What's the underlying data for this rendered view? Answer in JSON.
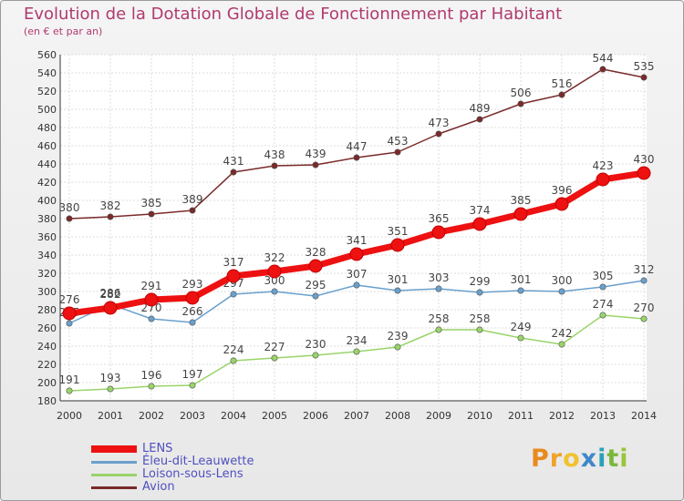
{
  "title": "Evolution de la Dotation Globale de Fonctionnement par Habitant",
  "subtitle": "(en € et par an)",
  "logo": {
    "letters": [
      {
        "ch": "P",
        "color": "#e98a1e"
      },
      {
        "ch": "r",
        "color": "#f0a32a"
      },
      {
        "ch": "o",
        "color": "#f2c12e"
      },
      {
        "ch": "x",
        "color": "#3f87c8"
      },
      {
        "ch": "i",
        "color": "#2aa0b8"
      },
      {
        "ch": "t",
        "color": "#7ab83d"
      },
      {
        "ch": "i",
        "color": "#9bc43a"
      }
    ]
  },
  "chart_data": {
    "type": "line",
    "title": "Evolution de la Dotation Globale de Fonctionnement par Habitant",
    "subtitle": "(en € et par an)",
    "x": [
      2000,
      2001,
      2002,
      2003,
      2004,
      2005,
      2006,
      2007,
      2008,
      2009,
      2010,
      2011,
      2012,
      2013,
      2014
    ],
    "ylim": [
      180,
      560
    ],
    "yticks": [
      180,
      200,
      220,
      240,
      260,
      280,
      300,
      320,
      340,
      360,
      380,
      400,
      420,
      440,
      460,
      480,
      500,
      520,
      540,
      560
    ],
    "grid": true,
    "legend": "bottom-left",
    "series": [
      {
        "name": "Avion",
        "color": "#7a2a2a",
        "values": [
          380,
          382,
          385,
          389,
          431,
          438,
          439,
          447,
          453,
          473,
          489,
          506,
          516,
          544,
          535
        ]
      },
      {
        "name": "Loison-sous-Lens",
        "color": "#99d46a",
        "values": [
          191,
          193,
          196,
          197,
          224,
          227,
          230,
          234,
          239,
          258,
          258,
          249,
          242,
          274,
          270
        ]
      },
      {
        "name": "Éleu-dit-Leauwette",
        "color": "#6aa0cc",
        "values": [
          265,
          286,
          270,
          266,
          297,
          300,
          295,
          307,
          301,
          303,
          299,
          301,
          300,
          305,
          312
        ]
      },
      {
        "name": "LENS",
        "color": "#ee1111",
        "values": [
          276,
          282,
          291,
          293,
          317,
          322,
          328,
          341,
          351,
          365,
          374,
          385,
          396,
          423,
          430
        ]
      }
    ]
  },
  "legend_items": [
    {
      "name": "LENS",
      "color": "#ee1111"
    },
    {
      "name": "Éleu-dit-Leauwette",
      "color": "#6aa0cc"
    },
    {
      "name": "Loison-sous-Lens",
      "color": "#99d46a"
    },
    {
      "name": "Avion",
      "color": "#7a2a2a"
    }
  ]
}
